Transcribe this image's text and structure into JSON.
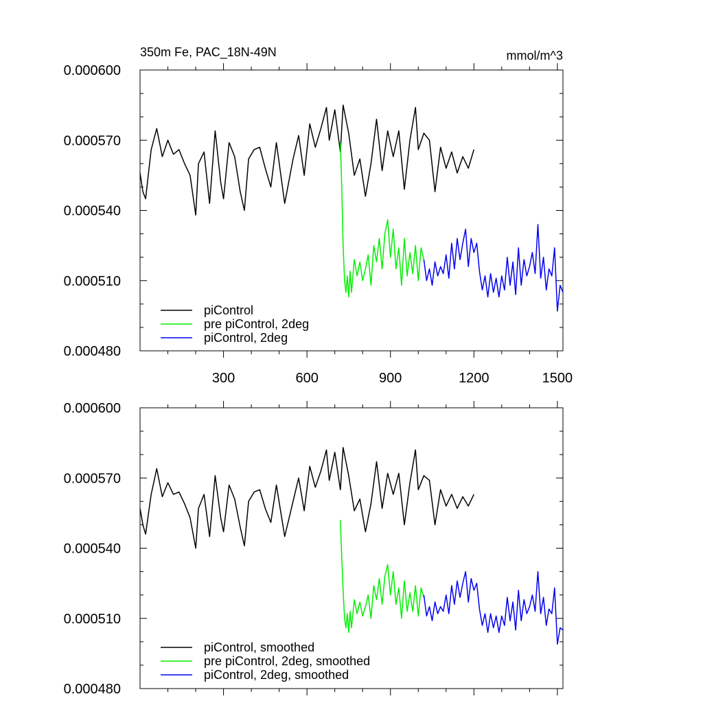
{
  "chart_data": [
    {
      "type": "line",
      "title": "350m Fe, PAC_18N-49N",
      "units": "mmol/m^3",
      "xlim": [
        0,
        1520
      ],
      "ylim": [
        0.00048,
        0.0006
      ],
      "xticks": [
        300,
        600,
        900,
        1200,
        1500
      ],
      "xtick_labels": [
        "300",
        "600",
        "900",
        "1200",
        "1500"
      ],
      "yticks": [
        0.00048,
        0.00051,
        0.00054,
        0.00057,
        0.0006
      ],
      "ytick_labels": [
        "0.000480",
        "0.000510",
        "0.000540",
        "0.000570",
        "0.000600"
      ],
      "legend_position": "bottom-left",
      "series": [
        {
          "name": "piControl",
          "color": "#000000",
          "x": [
            0,
            10,
            20,
            40,
            60,
            80,
            100,
            120,
            140,
            160,
            180,
            200,
            210,
            230,
            250,
            270,
            290,
            300,
            320,
            340,
            360,
            375,
            390,
            410,
            430,
            450,
            470,
            490,
            520,
            550,
            570,
            590,
            610,
            630,
            650,
            670,
            680,
            700,
            720,
            730,
            750,
            770,
            790,
            810,
            830,
            850,
            870,
            890,
            910,
            930,
            950,
            970,
            990,
            1000,
            1020,
            1040,
            1060,
            1080,
            1100,
            1120,
            1140,
            1160,
            1180,
            1200
          ],
          "y": [
            0.000556,
            0.000548,
            0.000545,
            0.000566,
            0.000575,
            0.000563,
            0.00057,
            0.000564,
            0.000566,
            0.00056,
            0.000555,
            0.000538,
            0.00056,
            0.000565,
            0.000543,
            0.000574,
            0.000552,
            0.000545,
            0.000569,
            0.000563,
            0.000548,
            0.00054,
            0.000562,
            0.000566,
            0.000567,
            0.000558,
            0.00055,
            0.000569,
            0.000543,
            0.000562,
            0.000572,
            0.000555,
            0.000577,
            0.000567,
            0.000575,
            0.000584,
            0.00057,
            0.000583,
            0.000565,
            0.000585,
            0.000573,
            0.000555,
            0.000562,
            0.000546,
            0.00056,
            0.000579,
            0.000557,
            0.000574,
            0.000563,
            0.000574,
            0.000549,
            0.00057,
            0.000584,
            0.000566,
            0.000573,
            0.00057,
            0.000548,
            0.000567,
            0.000558,
            0.000565,
            0.000556,
            0.000563,
            0.000558,
            0.000566
          ]
        },
        {
          "name": "pre piControl, 2deg",
          "color": "#00ee00",
          "x": [
            720,
            725,
            730,
            735,
            740,
            745,
            750,
            755,
            760,
            770,
            780,
            790,
            800,
            810,
            820,
            830,
            840,
            850,
            860,
            870,
            880,
            890,
            900,
            910,
            920,
            930,
            940,
            950,
            960,
            970,
            980,
            990,
            1000,
            1010,
            1020
          ],
          "y": [
            0.000569,
            0.00055,
            0.000525,
            0.00051,
            0.000505,
            0.000512,
            0.000503,
            0.000514,
            0.000505,
            0.000519,
            0.000512,
            0.000518,
            0.00051,
            0.000515,
            0.000521,
            0.000508,
            0.000525,
            0.000518,
            0.000528,
            0.000515,
            0.00053,
            0.000536,
            0.00052,
            0.000532,
            0.000515,
            0.000524,
            0.000508,
            0.000528,
            0.000512,
            0.000522,
            0.000513,
            0.000525,
            0.00051,
            0.000524,
            0.000519
          ]
        },
        {
          "name": "piControl, 2deg",
          "color": "#0000ee",
          "x": [
            1020,
            1030,
            1040,
            1050,
            1060,
            1070,
            1080,
            1090,
            1100,
            1110,
            1120,
            1130,
            1140,
            1150,
            1160,
            1170,
            1180,
            1190,
            1200,
            1210,
            1220,
            1230,
            1240,
            1250,
            1260,
            1270,
            1280,
            1290,
            1300,
            1310,
            1320,
            1330,
            1340,
            1350,
            1360,
            1370,
            1380,
            1390,
            1400,
            1410,
            1420,
            1430,
            1440,
            1450,
            1460,
            1470,
            1480,
            1490,
            1500,
            1510,
            1520
          ],
          "y": [
            0.000519,
            0.00051,
            0.000515,
            0.000508,
            0.000518,
            0.000512,
            0.000516,
            0.000513,
            0.000521,
            0.000511,
            0.000526,
            0.000515,
            0.000528,
            0.000519,
            0.000526,
            0.000532,
            0.000516,
            0.000528,
            0.000522,
            0.000526,
            0.000514,
            0.000506,
            0.000512,
            0.000503,
            0.000513,
            0.000505,
            0.000511,
            0.000503,
            0.000512,
            0.000506,
            0.00052,
            0.000508,
            0.000518,
            0.000504,
            0.000524,
            0.000508,
            0.000519,
            0.000512,
            0.000516,
            0.000522,
            0.000513,
            0.000534,
            0.000511,
            0.00052,
            0.000506,
            0.000515,
            0.000512,
            0.000524,
            0.000497,
            0.000508,
            0.000505
          ]
        }
      ]
    },
    {
      "type": "line",
      "xlim": [
        0,
        1520
      ],
      "ylim": [
        0.00048,
        0.0006
      ],
      "xticks": [
        300,
        600,
        900,
        1200,
        1500
      ],
      "yticks": [
        0.00048,
        0.00051,
        0.00054,
        0.00057,
        0.0006
      ],
      "ytick_labels": [
        "0.000480",
        "0.000510",
        "0.000540",
        "0.000570",
        "0.000600"
      ],
      "legend_position": "bottom-left",
      "series": [
        {
          "name": "piControl, smoothed",
          "color": "#000000",
          "x": [
            0,
            10,
            20,
            40,
            60,
            80,
            100,
            120,
            140,
            160,
            180,
            200,
            210,
            230,
            250,
            270,
            290,
            300,
            320,
            340,
            360,
            375,
            390,
            410,
            430,
            450,
            470,
            490,
            520,
            550,
            570,
            590,
            610,
            630,
            650,
            670,
            680,
            700,
            720,
            730,
            750,
            770,
            790,
            810,
            830,
            850,
            870,
            890,
            910,
            930,
            950,
            970,
            990,
            1000,
            1020,
            1040,
            1060,
            1080,
            1100,
            1120,
            1140,
            1160,
            1180,
            1200
          ],
          "y": [
            0.000557,
            0.00055,
            0.000546,
            0.000563,
            0.000574,
            0.000562,
            0.000568,
            0.000563,
            0.000564,
            0.000559,
            0.000553,
            0.00054,
            0.000557,
            0.000563,
            0.000545,
            0.000571,
            0.000553,
            0.000547,
            0.000567,
            0.000561,
            0.000549,
            0.000541,
            0.00056,
            0.000564,
            0.000565,
            0.000557,
            0.000551,
            0.000567,
            0.000545,
            0.00056,
            0.00057,
            0.000556,
            0.000575,
            0.000566,
            0.000573,
            0.000582,
            0.000569,
            0.000581,
            0.000565,
            0.000583,
            0.000571,
            0.000556,
            0.000561,
            0.000547,
            0.000559,
            0.000577,
            0.000557,
            0.000572,
            0.000563,
            0.000572,
            0.00055,
            0.000568,
            0.000582,
            0.000565,
            0.000571,
            0.000569,
            0.00055,
            0.000565,
            0.000558,
            0.000563,
            0.000557,
            0.000562,
            0.000558,
            0.000563
          ]
        },
        {
          "name": "pre piControl, 2deg, smoothed",
          "color": "#00ee00",
          "x": [
            720,
            725,
            730,
            735,
            740,
            745,
            750,
            755,
            760,
            770,
            780,
            790,
            800,
            810,
            820,
            830,
            840,
            850,
            860,
            870,
            880,
            890,
            900,
            910,
            920,
            930,
            940,
            950,
            960,
            970,
            980,
            990,
            1000,
            1010,
            1020
          ],
          "y": [
            0.000552,
            0.000536,
            0.000522,
            0.00051,
            0.000506,
            0.000512,
            0.000504,
            0.000513,
            0.000506,
            0.000518,
            0.000512,
            0.000517,
            0.000511,
            0.000515,
            0.00052,
            0.00051,
            0.000524,
            0.000518,
            0.000527,
            0.000516,
            0.000528,
            0.000533,
            0.00052,
            0.00053,
            0.000516,
            0.000523,
            0.00051,
            0.000526,
            0.000513,
            0.000521,
            0.000513,
            0.000524,
            0.000511,
            0.000523,
            0.000519
          ]
        },
        {
          "name": "piControl, 2deg, smoothed",
          "color": "#0000ee",
          "x": [
            1020,
            1030,
            1040,
            1050,
            1060,
            1070,
            1080,
            1090,
            1100,
            1110,
            1120,
            1130,
            1140,
            1150,
            1160,
            1170,
            1180,
            1190,
            1200,
            1210,
            1220,
            1230,
            1240,
            1250,
            1260,
            1270,
            1280,
            1290,
            1300,
            1310,
            1320,
            1330,
            1340,
            1350,
            1360,
            1370,
            1380,
            1390,
            1400,
            1410,
            1420,
            1430,
            1440,
            1450,
            1460,
            1470,
            1480,
            1490,
            1500,
            1510,
            1520
          ],
          "y": [
            0.00052,
            0.000511,
            0.000515,
            0.000509,
            0.000517,
            0.000512,
            0.000515,
            0.000513,
            0.00052,
            0.000512,
            0.000524,
            0.000516,
            0.000526,
            0.000519,
            0.000525,
            0.00053,
            0.000517,
            0.000527,
            0.000522,
            0.000525,
            0.000514,
            0.000507,
            0.000512,
            0.000504,
            0.000512,
            0.000506,
            0.000511,
            0.000504,
            0.000511,
            0.000507,
            0.000519,
            0.000509,
            0.000517,
            0.000505,
            0.000522,
            0.000509,
            0.000518,
            0.000512,
            0.000515,
            0.00052,
            0.000513,
            0.00053,
            0.000512,
            0.000519,
            0.000507,
            0.000514,
            0.000512,
            0.000523,
            0.000499,
            0.000506,
            0.000505
          ]
        }
      ]
    }
  ]
}
